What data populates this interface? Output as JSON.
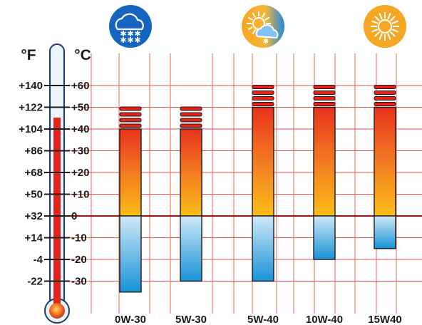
{
  "chart_data": {
    "type": "bar",
    "title": "",
    "units": {
      "fahrenheit": "°F",
      "celsius": "°C"
    },
    "celsius_ticks": [
      "+60",
      "+50",
      "+40",
      "+30",
      "+20",
      "+10",
      "0",
      "-10",
      "-20",
      "-30"
    ],
    "fahrenheit_ticks": [
      "+140",
      "+122",
      "+104",
      "+86",
      "+68",
      "+50",
      "+32",
      "+14",
      "-4",
      "-22"
    ],
    "ylim": [
      -36,
      64
    ],
    "categories": [
      "0W-30",
      "5W-30",
      "5W-40",
      "10W-40",
      "15W40"
    ],
    "series": [
      {
        "values_min": [
          -35,
          -30,
          -30,
          -20,
          -15
        ],
        "values_max": [
          40,
          40,
          50,
          50,
          50
        ]
      }
    ],
    "grid": true,
    "icons": [
      {
        "name": "snow-cloud-icon",
        "over_category": "0W-30"
      },
      {
        "name": "sun-cloud-icon",
        "over_category": "5W-40"
      },
      {
        "name": "sun-icon",
        "over_category": "15W40"
      }
    ],
    "thermometer_level_c": 40,
    "colors": {
      "grid": "#e8564a",
      "zero_line": "#a01010",
      "hot_top": "#e8321e",
      "hot_bottom": "#fbbd1a",
      "cold_top": "#cfe9f8",
      "cold_bottom": "#1892d6",
      "thermo_red": "#e3241b",
      "icon_blue": "#1565c0",
      "icon_orange": "#f5a623"
    }
  }
}
